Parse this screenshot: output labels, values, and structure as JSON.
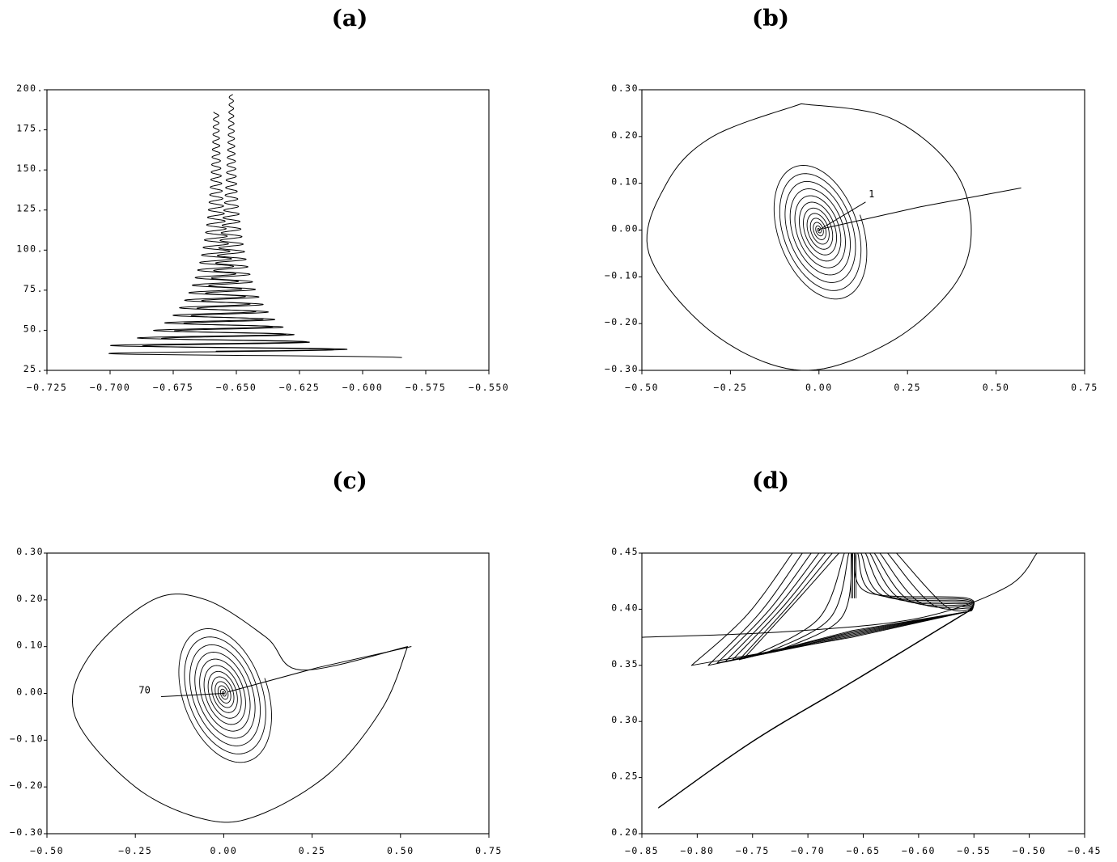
{
  "chart_data": [
    {
      "panel": "(a)",
      "type": "line",
      "xlim": [
        -0.725,
        -0.55
      ],
      "ylim": [
        25,
        200
      ],
      "xticks": [
        -0.725,
        -0.7,
        -0.675,
        -0.65,
        -0.625,
        -0.6,
        -0.575,
        -0.55
      ],
      "xtick_labels": [
        "−0.725",
        "−0.700",
        "−0.675",
        "−0.650",
        "−0.625",
        "−0.600",
        "−0.575",
        "−0.550"
      ],
      "yticks": [
        25,
        50,
        75,
        100,
        125,
        150,
        175,
        200
      ],
      "ytick_labels": [
        "25.",
        "50.",
        "75.",
        "100.",
        "125.",
        "150.",
        "175.",
        "200."
      ],
      "series": [
        {
          "center": -0.658,
          "y_start": 37,
          "y_end": 186,
          "amp_start": 0.065,
          "amp_end": 0.001,
          "period": 4.7
        },
        {
          "center": -0.652,
          "y_start": 33,
          "y_end": 197,
          "amp_start": 0.07,
          "amp_end": 0.0008,
          "period": 4.7
        }
      ]
    },
    {
      "panel": "(b)",
      "type": "line",
      "xlim": [
        -0.5,
        0.75
      ],
      "ylim": [
        -0.3,
        0.3
      ],
      "xticks": [
        -0.5,
        -0.25,
        0.0,
        0.25,
        0.5,
        0.75
      ],
      "xtick_labels": [
        "−0.50",
        "−0.25",
        "0.00",
        "0.25",
        "0.50",
        "0.75"
      ],
      "yticks": [
        -0.3,
        -0.2,
        -0.1,
        0.0,
        0.1,
        0.2,
        0.3
      ],
      "ytick_labels": [
        "−0.30",
        "−0.20",
        "−0.10",
        "0.00",
        "0.10",
        "0.20",
        "0.30"
      ],
      "annotation": {
        "text": "1",
        "x": 0.14,
        "y": 0.07
      },
      "big_loop": [
        [
          -0.05,
          0.27
        ],
        [
          0.2,
          0.24
        ],
        [
          0.38,
          0.13
        ],
        [
          0.43,
          0.0
        ],
        [
          0.38,
          -0.12
        ],
        [
          0.2,
          -0.24
        ],
        [
          -0.05,
          -0.3
        ],
        [
          -0.3,
          -0.22
        ],
        [
          -0.48,
          -0.05
        ],
        [
          -0.43,
          0.1
        ],
        [
          -0.3,
          0.2
        ]
      ],
      "spiral_start": [
        0.57,
        0.09
      ]
    },
    {
      "panel": "(c)",
      "type": "line",
      "xlim": [
        -0.5,
        0.75
      ],
      "ylim": [
        -0.3,
        0.3
      ],
      "xticks": [
        -0.5,
        -0.25,
        0.0,
        0.25,
        0.5,
        0.75
      ],
      "xtick_labels": [
        "−0.50",
        "−0.25",
        "0.00",
        "0.25",
        "0.50",
        "0.75"
      ],
      "yticks": [
        -0.3,
        -0.2,
        -0.1,
        0.0,
        0.1,
        0.2,
        0.3
      ],
      "ytick_labels": [
        "−0.30",
        "−0.20",
        "−0.10",
        "0.00",
        "0.10",
        "0.20",
        "0.30"
      ],
      "annotation": {
        "text": "70",
        "x": -0.19,
        "y": 0.0
      },
      "big_loop": [
        [
          0.52,
          0.1
        ],
        [
          0.45,
          -0.03
        ],
        [
          0.3,
          -0.17
        ],
        [
          0.1,
          -0.26
        ],
        [
          -0.05,
          -0.27
        ],
        [
          -0.25,
          -0.2
        ],
        [
          -0.42,
          -0.05
        ],
        [
          -0.38,
          0.08
        ],
        [
          -0.2,
          0.2
        ],
        [
          -0.05,
          0.2
        ],
        [
          0.12,
          0.12
        ],
        [
          0.22,
          0.05
        ]
      ],
      "spiral_start": [
        0.53,
        0.1
      ]
    },
    {
      "panel": "(d)",
      "type": "line",
      "xlim": [
        -0.85,
        -0.45
      ],
      "ylim": [
        0.2,
        0.45
      ],
      "xticks": [
        -0.85,
        -0.8,
        -0.75,
        -0.7,
        -0.65,
        -0.6,
        -0.55,
        -0.5,
        -0.45
      ],
      "xtick_labels": [
        "−0.85",
        "−0.80",
        "−0.75",
        "−0.70",
        "−0.65",
        "−0.60",
        "−0.55",
        "−0.50",
        "−0.45"
      ],
      "yticks": [
        0.2,
        0.25,
        0.3,
        0.35,
        0.4,
        0.45
      ],
      "ytick_labels": [
        "0.20",
        "0.25",
        "0.30",
        "0.35",
        "0.40",
        "0.45"
      ],
      "lower_curve": [
        [
          -0.835,
          0.223
        ],
        [
          -0.75,
          0.282
        ],
        [
          -0.66,
          0.335
        ],
        [
          -0.555,
          0.398
        ]
      ],
      "cross_curve": [
        [
          -0.85,
          0.375
        ],
        [
          -0.72,
          0.38
        ],
        [
          -0.6,
          0.392
        ],
        [
          -0.52,
          0.42
        ],
        [
          -0.493,
          0.45
        ]
      ],
      "fan_left_ends": [
        [
          -0.805,
          0.35
        ],
        [
          -0.79,
          0.35
        ],
        [
          -0.782,
          0.352
        ],
        [
          -0.775,
          0.353
        ],
        [
          -0.768,
          0.355
        ],
        [
          -0.762,
          0.355
        ],
        [
          -0.758,
          0.356
        ]
      ],
      "fan_top_x": [
        -0.714,
        -0.705,
        -0.697,
        -0.69,
        -0.684,
        -0.678,
        -0.672,
        -0.667,
        -0.663,
        -0.66
      ],
      "right_top_x": [
        -0.658,
        -0.655,
        -0.652,
        -0.648,
        -0.644,
        -0.64,
        -0.635,
        -0.628,
        -0.62
      ]
    }
  ],
  "panels": {
    "a": {
      "title": "(a)"
    },
    "b": {
      "title": "(b)"
    },
    "c": {
      "title": "(c)"
    },
    "d": {
      "title": "(d)"
    }
  }
}
